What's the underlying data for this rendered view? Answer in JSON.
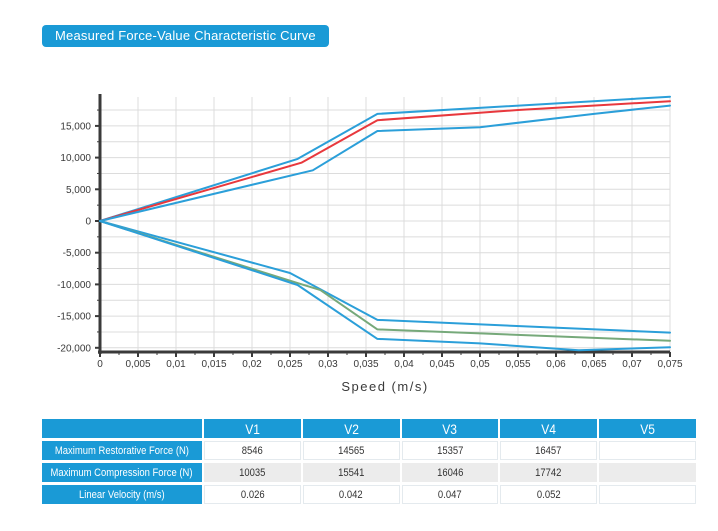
{
  "title_badge": {
    "label": "Measured Force-Value Characteristic Curve",
    "bg_color": "#1a9ad6"
  },
  "chart_data": {
    "type": "line",
    "title": "",
    "xlabel": "Speed (m/s)",
    "ylabel": "",
    "xlim": [
      0,
      0.075
    ],
    "ylim": [
      -21000,
      20000
    ],
    "grid": true,
    "legend": "none",
    "x_tick_values": [
      0,
      0.005,
      0.01,
      0.015,
      0.02,
      0.025,
      0.03,
      0.035,
      0.04,
      0.045,
      0.05,
      0.055,
      0.06,
      0.065,
      0.07,
      0.075
    ],
    "x_tick_labels": [
      "0",
      "0,005",
      "0,01",
      "0,015",
      "0,02",
      "0,025",
      "0,03",
      "0,035",
      "0,04",
      "0,045",
      "0,05",
      "0,055",
      "0,06",
      "0,065",
      "0,07",
      "0,075"
    ],
    "y_tick_values": [
      15000,
      10000,
      5000,
      0,
      -5000,
      -10000,
      -15000,
      -20000
    ],
    "y_tick_labels": [
      "15,000",
      "10,000",
      "5,000",
      "0",
      "-5,000",
      "-10,000",
      "-15,000",
      "-20,000"
    ],
    "colors": {
      "tolerance_band": "#2b9fd9",
      "restorative_measured": "#e8383d",
      "compression_measured": "#76a97a",
      "grid": "#dcdcdc",
      "axis": "#3a3a3a"
    },
    "series": [
      {
        "name": "restorative_upper_limit",
        "color": "#2b9fd9",
        "points": [
          [
            0,
            0
          ],
          [
            0.026,
            9800
          ],
          [
            0.0365,
            16900
          ],
          [
            0.075,
            19600
          ]
        ]
      },
      {
        "name": "restorative_measured",
        "color": "#e8383d",
        "points": [
          [
            0,
            0
          ],
          [
            0.0265,
            9200
          ],
          [
            0.0365,
            15900
          ],
          [
            0.055,
            17500
          ],
          [
            0.075,
            18900
          ]
        ]
      },
      {
        "name": "restorative_lower_limit",
        "color": "#2b9fd9",
        "points": [
          [
            0,
            0
          ],
          [
            0.028,
            8000
          ],
          [
            0.0365,
            14200
          ],
          [
            0.05,
            14800
          ],
          [
            0.065,
            16900
          ],
          [
            0.075,
            18200
          ]
        ]
      },
      {
        "name": "compression_upper_limit",
        "color": "#2b9fd9",
        "points": [
          [
            0,
            0
          ],
          [
            0.025,
            -8200
          ],
          [
            0.0365,
            -15600
          ],
          [
            0.075,
            -17600
          ]
        ]
      },
      {
        "name": "compression_measured",
        "color": "#76a97a",
        "points": [
          [
            0,
            0
          ],
          [
            0.026,
            -9800
          ],
          [
            0.029,
            -10900
          ],
          [
            0.0365,
            -17100
          ],
          [
            0.075,
            -18900
          ]
        ]
      },
      {
        "name": "compression_lower_limit",
        "color": "#2b9fd9",
        "points": [
          [
            0,
            0
          ],
          [
            0.026,
            -10100
          ],
          [
            0.0365,
            -18600
          ],
          [
            0.05,
            -19300
          ],
          [
            0.063,
            -20400
          ],
          [
            0.075,
            -19900
          ]
        ]
      }
    ]
  },
  "table": {
    "columns": [
      "",
      "V1",
      "V2",
      "V3",
      "V4",
      "V5"
    ],
    "rows": [
      {
        "label": "Maximum Restorative Force (N)",
        "values": [
          "8546",
          "14565",
          "15357",
          "16457",
          ""
        ]
      },
      {
        "label": "Maximum Compression Force (N)",
        "values": [
          "10035",
          "15541",
          "16046",
          "17742",
          ""
        ]
      },
      {
        "label": "Linear Velocity (m/s)",
        "values": [
          "0.026",
          "0.042",
          "0.047",
          "0.052",
          ""
        ]
      }
    ]
  }
}
